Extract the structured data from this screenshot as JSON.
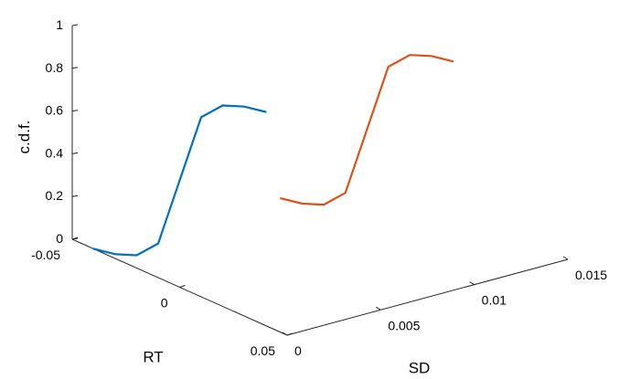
{
  "chart_data": {
    "type": "line",
    "projection": "3d",
    "title": "",
    "xlabel": "RT",
    "ylabel": "SD",
    "zlabel": "c.d.f.",
    "x_range": [
      -0.05,
      0.05
    ],
    "y_range": [
      0,
      0.015
    ],
    "z_range": [
      0,
      1
    ],
    "x_ticks": [
      -0.05,
      0,
      0.05
    ],
    "x_tick_labels": [
      "-0.05",
      "0",
      "0.05"
    ],
    "y_ticks": [
      0,
      0.005,
      0.01,
      0.015
    ],
    "y_tick_labels": [
      "0",
      "0.005",
      "0.01",
      "0.015"
    ],
    "z_ticks": [
      0,
      0.2,
      0.4,
      0.6,
      0.8,
      1
    ],
    "z_tick_labels": [
      "0",
      "0.2",
      "0.4",
      "0.6",
      "0.8",
      "1"
    ],
    "grid": false,
    "legend": "none",
    "series": [
      {
        "color": "#0072BD",
        "points": [
          {
            "x": -0.04,
            "y": 0,
            "z": 0.0
          },
          {
            "x": -0.03,
            "y": 0,
            "z": 0.02
          },
          {
            "x": -0.02,
            "y": 0,
            "z": 0.06
          },
          {
            "x": -0.01,
            "y": 0,
            "z": 0.16
          },
          {
            "x": 0.0,
            "y": 0,
            "z": 0.5
          },
          {
            "x": 0.01,
            "y": 0,
            "z": 0.84
          },
          {
            "x": 0.02,
            "y": 0,
            "z": 0.94
          },
          {
            "x": 0.03,
            "y": 0,
            "z": 0.98
          },
          {
            "x": 0.04,
            "y": 0,
            "z": 1.0
          }
        ]
      },
      {
        "color": "#D95319",
        "points": [
          {
            "x": -0.04,
            "y": 0.01,
            "z": 0.0
          },
          {
            "x": -0.03,
            "y": 0.01,
            "z": 0.02
          },
          {
            "x": -0.02,
            "y": 0.01,
            "z": 0.06
          },
          {
            "x": -0.01,
            "y": 0.01,
            "z": 0.16
          },
          {
            "x": 0.0,
            "y": 0.01,
            "z": 0.5
          },
          {
            "x": 0.01,
            "y": 0.01,
            "z": 0.84
          },
          {
            "x": 0.02,
            "y": 0.01,
            "z": 0.94
          },
          {
            "x": 0.03,
            "y": 0.01,
            "z": 0.98
          },
          {
            "x": 0.04,
            "y": 0.01,
            "z": 1.0
          }
        ]
      }
    ]
  }
}
